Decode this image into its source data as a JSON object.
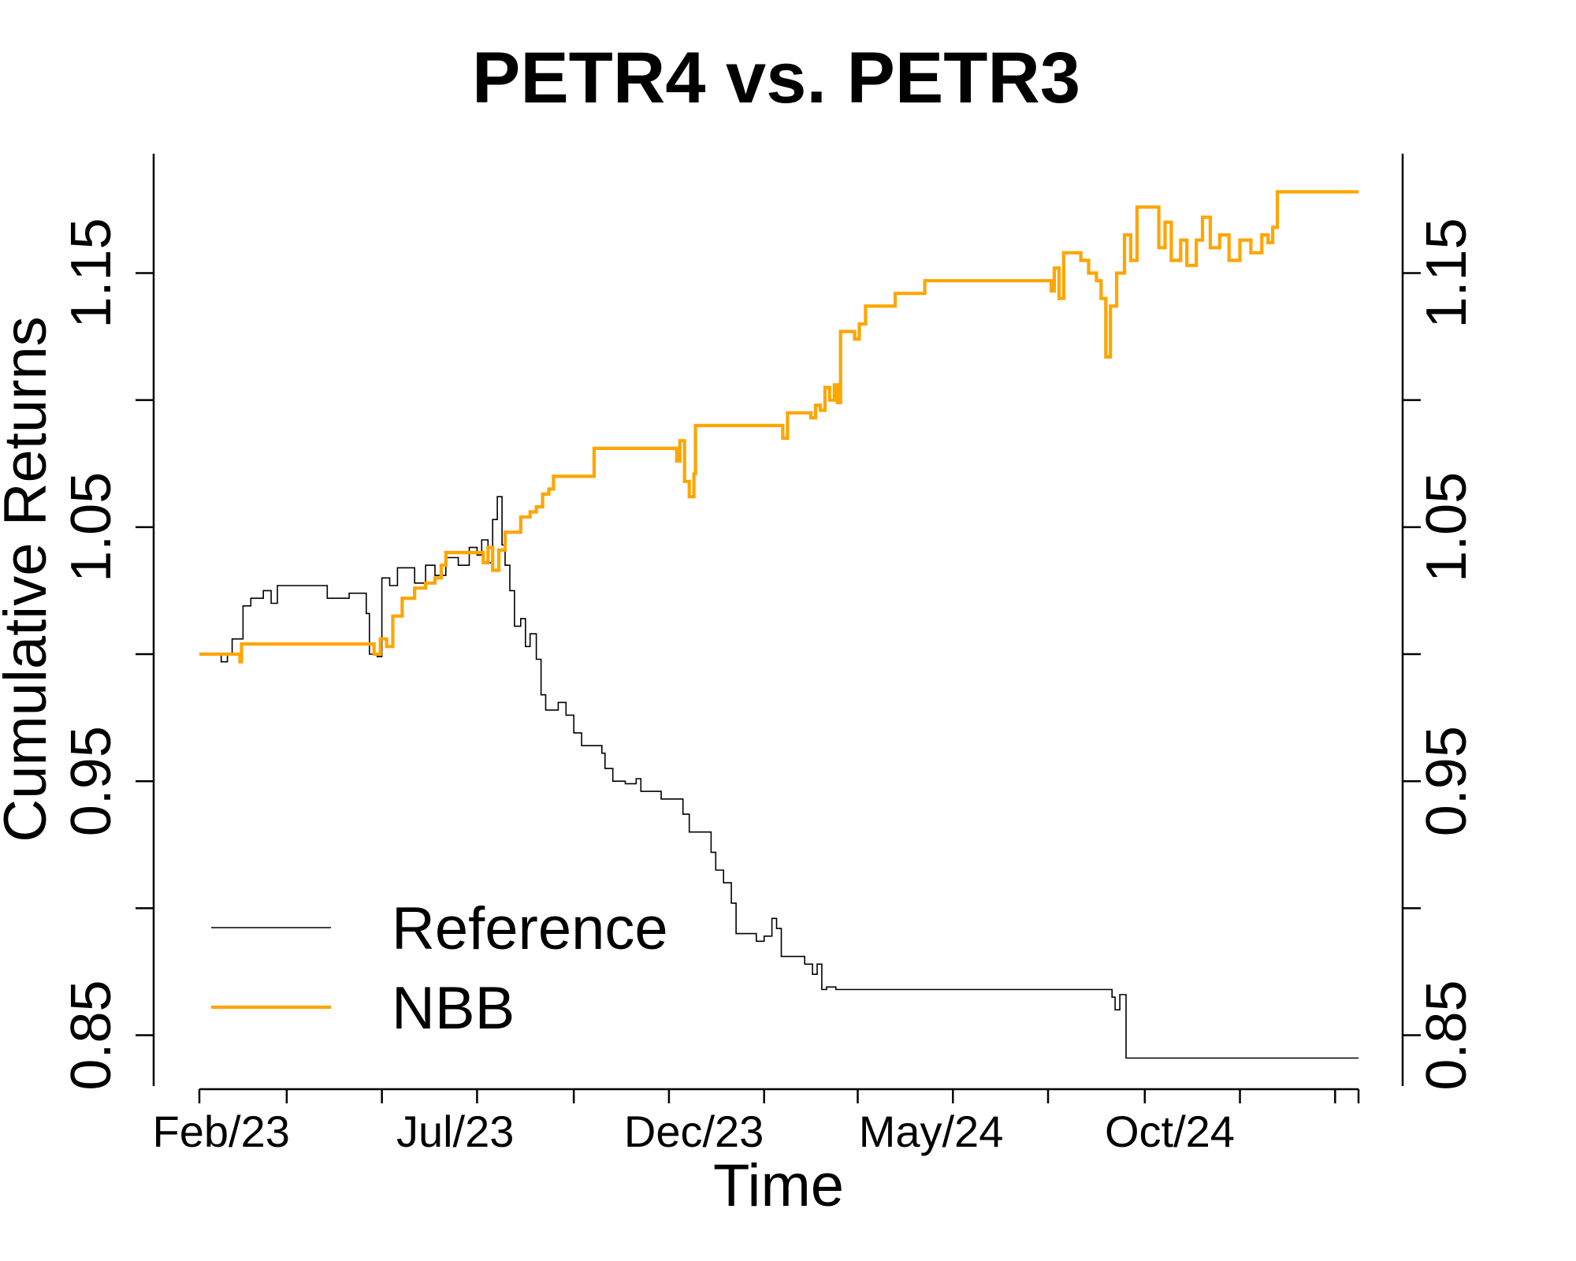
{
  "chart_data": {
    "type": "line",
    "title": "PETR4 vs. PETR3",
    "xlabel": "Time",
    "ylabel": "Cumulative Returns",
    "x_tick_labels": [
      "Feb/23",
      "Jul/23",
      "Dec/23",
      "May/24",
      "Oct/24"
    ],
    "x_tick_dates": [
      "2023-02-01",
      "2023-07-01",
      "2023-12-01",
      "2024-05-01",
      "2024-10-01"
    ],
    "x_range": [
      "2023-01-18",
      "2025-01-30"
    ],
    "y_ticks": [
      0.85,
      0.9,
      0.95,
      1.0,
      1.05,
      1.1,
      1.15
    ],
    "y_tick_labels": [
      "0.85",
      "",
      "0.95",
      "",
      "1.05",
      "",
      "1.15"
    ],
    "ylim": [
      0.83,
      1.197
    ],
    "grid": false,
    "legend_position": "bottom-left",
    "series": [
      {
        "name": "Reference",
        "color": "#000000",
        "points": [
          [
            "2023-01-18",
            null
          ],
          [
            "2023-01-31",
            1.0
          ],
          [
            "2023-02-01",
            0.997
          ],
          [
            "2023-02-05",
            1.0
          ],
          [
            "2023-02-08",
            1.006
          ],
          [
            "2023-02-13",
            1.006
          ],
          [
            "2023-02-15",
            1.019
          ],
          [
            "2023-02-20",
            1.022
          ],
          [
            "2023-02-28",
            1.025
          ],
          [
            "2023-03-05",
            1.02
          ],
          [
            "2023-03-09",
            1.027
          ],
          [
            "2023-04-08",
            1.027
          ],
          [
            "2023-04-10",
            1.022
          ],
          [
            "2023-04-22",
            1.022
          ],
          [
            "2023-04-24",
            1.024
          ],
          [
            "2023-05-05",
            1.016
          ],
          [
            "2023-05-07",
            1.0
          ],
          [
            "2023-05-12",
            0.999
          ],
          [
            "2023-05-15",
            1.03
          ],
          [
            "2023-05-20",
            1.027
          ],
          [
            "2023-05-25",
            1.034
          ],
          [
            "2023-06-05",
            1.028
          ],
          [
            "2023-06-12",
            1.035
          ],
          [
            "2023-06-18",
            1.031
          ],
          [
            "2023-06-25",
            1.038
          ],
          [
            "2023-07-03",
            1.035
          ],
          [
            "2023-07-10",
            1.042
          ],
          [
            "2023-07-15",
            1.039
          ],
          [
            "2023-07-18",
            1.045
          ],
          [
            "2023-07-22",
            1.036
          ],
          [
            "2023-07-25",
            1.053
          ],
          [
            "2023-07-28",
            1.062
          ],
          [
            "2023-07-31",
            1.043
          ],
          [
            "2023-08-02",
            1.035
          ],
          [
            "2023-08-05",
            1.025
          ],
          [
            "2023-08-08",
            1.011
          ],
          [
            "2023-08-12",
            1.014
          ],
          [
            "2023-08-15",
            1.003
          ],
          [
            "2023-08-18",
            1.008
          ],
          [
            "2023-08-22",
            0.998
          ],
          [
            "2023-08-25",
            0.984
          ],
          [
            "2023-08-28",
            0.978
          ],
          [
            "2023-09-05",
            0.981
          ],
          [
            "2023-09-10",
            0.976
          ],
          [
            "2023-09-15",
            0.969
          ],
          [
            "2023-09-20",
            0.964
          ],
          [
            "2023-09-28",
            0.964
          ],
          [
            "2023-10-03",
            0.961
          ],
          [
            "2023-10-05",
            0.955
          ],
          [
            "2023-10-10",
            0.95
          ],
          [
            "2023-10-18",
            0.949
          ],
          [
            "2023-10-25",
            0.951
          ],
          [
            "2023-10-28",
            0.946
          ],
          [
            "2023-11-05",
            0.946
          ],
          [
            "2023-11-10",
            0.943
          ],
          [
            "2023-11-20",
            0.943
          ],
          [
            "2023-11-24",
            0.937
          ],
          [
            "2023-11-28",
            0.93
          ],
          [
            "2023-12-08",
            0.93
          ],
          [
            "2023-12-12",
            0.922
          ],
          [
            "2023-12-15",
            0.915
          ],
          [
            "2023-12-20",
            0.91
          ],
          [
            "2023-12-25",
            0.902
          ],
          [
            "2023-12-28",
            0.89
          ],
          [
            "2024-01-05",
            0.89
          ],
          [
            "2024-01-10",
            0.887
          ],
          [
            "2024-01-15",
            0.889
          ],
          [
            "2024-01-20",
            0.896
          ],
          [
            "2024-01-23",
            0.892
          ],
          [
            "2024-01-26",
            0.881
          ],
          [
            "2024-02-03",
            0.881
          ],
          [
            "2024-02-10",
            0.878
          ],
          [
            "2024-02-15",
            0.874
          ],
          [
            "2024-02-18",
            0.878
          ],
          [
            "2024-02-21",
            0.868
          ],
          [
            "2024-02-24",
            0.869
          ],
          [
            "2024-03-01",
            0.868
          ],
          [
            "2024-08-22",
            0.868
          ],
          [
            "2024-08-25",
            0.865
          ],
          [
            "2024-08-27",
            0.86
          ],
          [
            "2024-08-30",
            0.866
          ],
          [
            "2024-09-02",
            0.866
          ],
          [
            "2024-09-03",
            0.841
          ],
          [
            "2025-01-30",
            0.841
          ]
        ]
      },
      {
        "name": "NBB",
        "color": "#FFA500",
        "points": [
          [
            "2023-01-18",
            1.0
          ],
          [
            "2023-02-12",
            1.0
          ],
          [
            "2023-02-13",
            0.997
          ],
          [
            "2023-02-14",
            1.004
          ],
          [
            "2023-05-06",
            1.004
          ],
          [
            "2023-05-10",
            1.0
          ],
          [
            "2023-05-14",
            1.006
          ],
          [
            "2023-05-18",
            1.003
          ],
          [
            "2023-05-22",
            1.015
          ],
          [
            "2023-05-28",
            1.022
          ],
          [
            "2023-06-05",
            1.026
          ],
          [
            "2023-06-12",
            1.028
          ],
          [
            "2023-06-18",
            1.03
          ],
          [
            "2023-06-22",
            1.035
          ],
          [
            "2023-06-25",
            1.04
          ],
          [
            "2023-07-15",
            1.04
          ],
          [
            "2023-07-19",
            1.036
          ],
          [
            "2023-07-22",
            1.042
          ],
          [
            "2023-07-25",
            1.033
          ],
          [
            "2023-07-29",
            1.041
          ],
          [
            "2023-08-02",
            1.048
          ],
          [
            "2023-08-10",
            1.048
          ],
          [
            "2023-08-12",
            1.054
          ],
          [
            "2023-08-18",
            1.056
          ],
          [
            "2023-08-22",
            1.058
          ],
          [
            "2023-08-26",
            1.063
          ],
          [
            "2023-08-30",
            1.065
          ],
          [
            "2023-09-02",
            1.07
          ],
          [
            "2023-09-25",
            1.07
          ],
          [
            "2023-09-28",
            1.081
          ],
          [
            "2023-11-18",
            1.081
          ],
          [
            "2023-11-20",
            1.076
          ],
          [
            "2023-11-22",
            1.084
          ],
          [
            "2023-11-25",
            1.068
          ],
          [
            "2023-11-28",
            1.062
          ],
          [
            "2023-12-01",
            1.071
          ],
          [
            "2023-12-02",
            1.09
          ],
          [
            "2024-01-25",
            1.09
          ],
          [
            "2024-01-27",
            1.085
          ],
          [
            "2024-01-30",
            1.095
          ],
          [
            "2024-02-12",
            1.095
          ],
          [
            "2024-02-14",
            1.093
          ],
          [
            "2024-02-17",
            1.098
          ],
          [
            "2024-02-20",
            1.096
          ],
          [
            "2024-02-23",
            1.105
          ],
          [
            "2024-02-26",
            1.1
          ],
          [
            "2024-02-29",
            1.106
          ],
          [
            "2024-03-02",
            1.099
          ],
          [
            "2024-03-04",
            1.127
          ],
          [
            "2024-03-10",
            1.127
          ],
          [
            "2024-03-13",
            1.124
          ],
          [
            "2024-03-16",
            1.13
          ],
          [
            "2024-03-20",
            1.137
          ],
          [
            "2024-04-05",
            1.137
          ],
          [
            "2024-04-08",
            1.142
          ],
          [
            "2024-04-25",
            1.142
          ],
          [
            "2024-04-27",
            1.147
          ],
          [
            "2024-07-15",
            1.147
          ],
          [
            "2024-07-17",
            1.143
          ],
          [
            "2024-07-19",
            1.152
          ],
          [
            "2024-07-22",
            1.14
          ],
          [
            "2024-07-25",
            1.158
          ],
          [
            "2024-08-05",
            1.155
          ],
          [
            "2024-08-10",
            1.15
          ],
          [
            "2024-08-15",
            1.147
          ],
          [
            "2024-08-18",
            1.14
          ],
          [
            "2024-08-21",
            1.117
          ],
          [
            "2024-08-24",
            1.137
          ],
          [
            "2024-08-28",
            1.15
          ],
          [
            "2024-09-02",
            1.165
          ],
          [
            "2024-09-06",
            1.155
          ],
          [
            "2024-09-10",
            1.176
          ],
          [
            "2024-09-20",
            1.176
          ],
          [
            "2024-09-24",
            1.16
          ],
          [
            "2024-09-28",
            1.17
          ],
          [
            "2024-10-02",
            1.155
          ],
          [
            "2024-10-08",
            1.163
          ],
          [
            "2024-10-12",
            1.153
          ],
          [
            "2024-10-18",
            1.163
          ],
          [
            "2024-10-22",
            1.172
          ],
          [
            "2024-10-27",
            1.16
          ],
          [
            "2024-11-02",
            1.165
          ],
          [
            "2024-11-08",
            1.155
          ],
          [
            "2024-11-15",
            1.163
          ],
          [
            "2024-11-22",
            1.158
          ],
          [
            "2024-11-29",
            1.165
          ],
          [
            "2024-12-03",
            1.162
          ],
          [
            "2024-12-06",
            1.168
          ],
          [
            "2024-12-09",
            1.182
          ],
          [
            "2025-01-30",
            1.182
          ]
        ]
      }
    ]
  }
}
